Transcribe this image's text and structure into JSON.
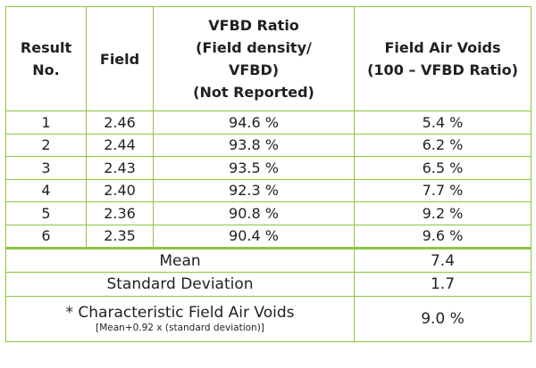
{
  "header": {
    "result_no": [
      "Result",
      "No."
    ],
    "field": "Field",
    "vfbd_ratio": [
      "VFBD Ratio",
      "(Field density/",
      "VFBD)",
      "(Not Reported)"
    ],
    "air_voids": [
      "Field Air Voids",
      "(100 – VFBD Ratio)"
    ]
  },
  "rows": [
    {
      "no": "1",
      "field": "2.46",
      "ratio": "94.6 %",
      "voids": "5.4 %"
    },
    {
      "no": "2",
      "field": "2.44",
      "ratio": "93.8 %",
      "voids": "6.2 %"
    },
    {
      "no": "3",
      "field": "2.43",
      "ratio": "93.5 %",
      "voids": "6.5 %"
    },
    {
      "no": "4",
      "field": "2.40",
      "ratio": "92.3 %",
      "voids": "7.7 %"
    },
    {
      "no": "5",
      "field": "2.36",
      "ratio": "90.8 %",
      "voids": "9.2 %"
    },
    {
      "no": "6",
      "field": "2.35",
      "ratio": "90.4 %",
      "voids": "9.6 %"
    }
  ],
  "summary": {
    "mean_label": "Mean",
    "mean_value": "7.4",
    "sd_label": "Standard Deviation",
    "sd_value": "1.7",
    "char_label": "* Characteristic Field Air Voids",
    "char_formula": "[Mean+0.92 x (standard deviation)]",
    "char_value": "9.0 %"
  },
  "colors": {
    "border": "#8cc63f",
    "text": "#231f20"
  }
}
